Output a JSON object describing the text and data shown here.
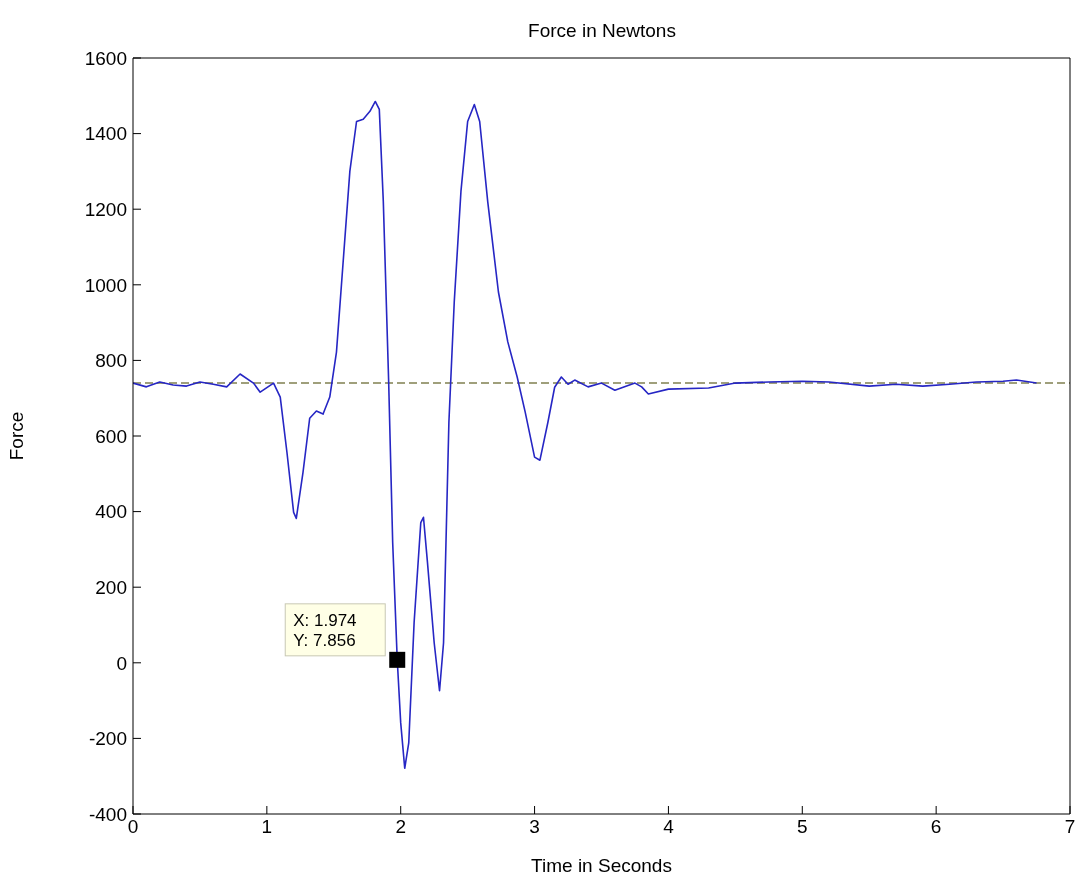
{
  "chart_data": {
    "type": "line",
    "title": "Force in Newtons",
    "xlabel": "Time in Seconds",
    "ylabel": "Force",
    "xlim": [
      0,
      7
    ],
    "xticks": [
      0,
      1,
      2,
      3,
      4,
      5,
      6,
      7
    ],
    "ylim": [
      -400,
      1600
    ],
    "yticks": [
      -400,
      -200,
      0,
      200,
      400,
      600,
      800,
      1000,
      1200,
      1400,
      1600
    ],
    "grid": false,
    "legend": false,
    "marker": "none",
    "line_style": "solid",
    "series": [
      {
        "color": "#2626c4",
        "x": [
          0,
          0.1,
          0.2,
          0.3,
          0.4,
          0.5,
          0.6,
          0.7,
          0.8,
          0.9,
          0.95,
          1.05,
          1.1,
          1.15,
          1.2,
          1.22,
          1.27,
          1.32,
          1.37,
          1.42,
          1.47,
          1.52,
          1.57,
          1.62,
          1.67,
          1.72,
          1.77,
          1.81,
          1.84,
          1.87,
          1.91,
          1.94,
          1.974,
          2.0,
          2.03,
          2.06,
          2.1,
          2.15,
          2.17,
          2.2,
          2.25,
          2.29,
          2.32,
          2.36,
          2.4,
          2.45,
          2.5,
          2.55,
          2.59,
          2.65,
          2.73,
          2.8,
          2.87,
          2.93,
          3.0,
          3.04,
          3.1,
          3.15,
          3.2,
          3.25,
          3.3,
          3.4,
          3.5,
          3.6,
          3.75,
          3.8,
          3.85,
          4.0,
          4.3,
          4.5,
          4.75,
          5.0,
          5.2,
          5.5,
          5.7,
          5.9,
          6.1,
          6.3,
          6.5,
          6.6,
          6.75
        ],
        "values": [
          740,
          730,
          743,
          735,
          732,
          743,
          737,
          730,
          764,
          740,
          716,
          740,
          703,
          557,
          398,
          382,
          504,
          647,
          666,
          658,
          703,
          822,
          1061,
          1300,
          1432,
          1438,
          1459,
          1485,
          1464,
          1220,
          743,
          318,
          7.856,
          -159,
          -279,
          -212,
          106,
          371,
          385,
          265,
          53,
          -74,
          53,
          637,
          955,
          1247,
          1432,
          1477,
          1432,
          1220,
          981,
          849,
          756,
          663,
          544,
          536,
          637,
          729,
          756,
          737,
          748,
          730,
          740,
          721,
          740,
          730,
          711,
          724,
          727,
          740,
          743,
          745,
          743,
          732,
          737,
          732,
          737,
          743,
          745,
          748,
          740
        ]
      }
    ],
    "ref_lines": [
      {
        "axis": "y",
        "value": 740,
        "color": "#808050",
        "line_style": "dashed"
      }
    ],
    "annotations": [
      {
        "text": "X: 1.974\nY: 7.856",
        "x": 1.974,
        "y": 7.856
      }
    ]
  }
}
